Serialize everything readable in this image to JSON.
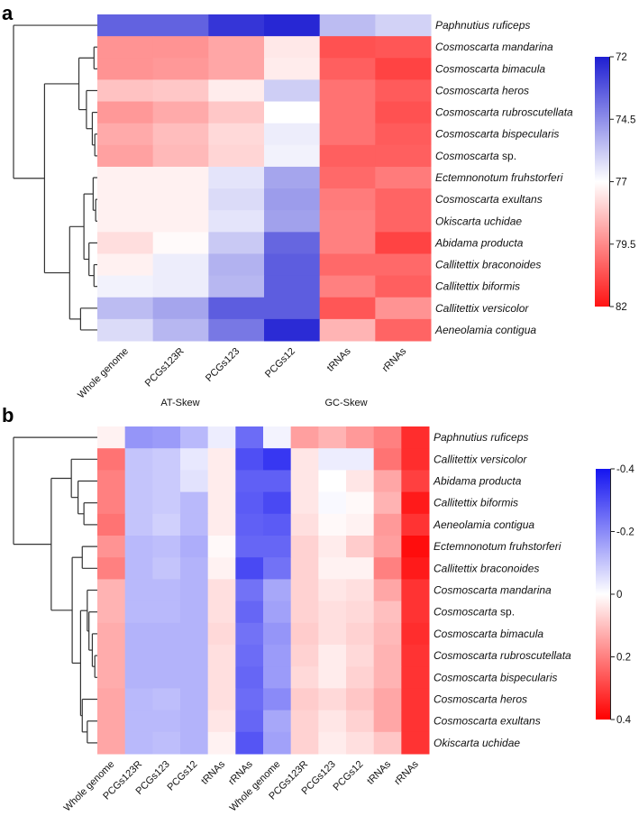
{
  "chart_data": [
    {
      "type": "heatmap",
      "panel_label": "a",
      "title": "",
      "columns": [
        "Whole genome",
        "PCGs123R",
        "PCGs123",
        "PCGs12",
        "tRNAs",
        "rRNAs"
      ],
      "rows": [
        "Paphnutius ruficeps",
        "Cosmoscarta mandarina",
        "Cosmoscarta bimacula",
        "Cosmoscarta heros",
        "Cosmoscarta rubroscutellata",
        "Cosmoscarta bispecularis",
        "Cosmoscarta sp.",
        "Ectemnonotum fruhstorferi",
        "Cosmoscarta exultans",
        "Okiscarta uchidae",
        "Abidama producta",
        "Callitettix braconoides",
        "Callitettix biformis",
        "Callitettix versicolor",
        "Aeneolamia contigua"
      ],
      "values": [
        [
          73.5,
          73.5,
          72.5,
          72.2,
          75.5,
          76.0
        ],
        [
          79.3,
          79.3,
          78.9,
          77.5,
          80.7,
          80.6
        ],
        [
          79.3,
          79.2,
          78.9,
          77.4,
          80.4,
          81.0
        ],
        [
          78.3,
          78.2,
          77.4,
          75.9,
          80.0,
          80.5
        ],
        [
          79.2,
          78.8,
          78.2,
          77.0,
          80.0,
          80.7
        ],
        [
          78.8,
          78.4,
          77.8,
          76.6,
          80.0,
          80.5
        ],
        [
          79.0,
          78.5,
          77.9,
          76.7,
          80.4,
          80.4
        ],
        [
          77.3,
          77.3,
          76.4,
          75.0,
          80.2,
          79.8
        ],
        [
          77.3,
          77.3,
          76.2,
          74.8,
          79.8,
          80.3
        ],
        [
          77.3,
          77.3,
          76.4,
          74.9,
          79.7,
          80.3
        ],
        [
          77.7,
          77.1,
          75.8,
          73.6,
          79.7,
          81.0
        ],
        [
          77.3,
          76.6,
          75.3,
          73.4,
          80.2,
          80.2
        ],
        [
          76.7,
          76.6,
          75.4,
          73.4,
          79.7,
          80.4
        ],
        [
          75.5,
          75.0,
          73.4,
          73.4,
          80.6,
          79.3
        ],
        [
          76.2,
          75.4,
          74.0,
          72.3,
          78.6,
          80.3
        ]
      ],
      "colorbar": {
        "min": 72,
        "max": 82,
        "mid": 77,
        "ticks": [
          "72",
          "74.5",
          "77",
          "79.5",
          "82"
        ],
        "low_color": "#1e1ed2",
        "mid_color": "#ffffff",
        "high_color": "#ff1414"
      },
      "dendrogram": {
        "h": 1.0,
        "c": [
          0,
          {
            "h": 0.63,
            "c": [
              {
                "h": 0.22,
                "c": [
                  {
                    "h": 0.04,
                    "c": [
                      1,
                      2
                    ]
                  },
                  {
                    "h": 0.13,
                    "c": [
                      3,
                      {
                        "h": 0.06,
                        "c": [
                          4,
                          {
                            "h": 0.03,
                            "c": [
                              5,
                              6
                            ]
                          }
                        ]
                      }
                    ]
                  }
                ]
              },
              {
                "h": 0.33,
                "c": [
                  {
                    "h": 0.16,
                    "c": [
                      {
                        "h": 0.05,
                        "c": [
                          7,
                          {
                            "h": 0.02,
                            "c": [
                              8,
                              9
                            ]
                          }
                        ]
                      },
                      {
                        "h": 0.1,
                        "c": [
                          10,
                          {
                            "h": 0.04,
                            "c": [
                              11,
                              12
                            ]
                          }
                        ]
                      }
                    ]
                  },
                  {
                    "h": 0.2,
                    "c": [
                      13,
                      14
                    ]
                  }
                ]
              }
            ]
          }
        ]
      }
    },
    {
      "type": "heatmap",
      "panel_label": "b",
      "title": "",
      "groups": [
        {
          "label": "AT-Skew",
          "span": [
            0,
            5
          ]
        },
        {
          "label": "GC-Skew",
          "span": [
            6,
            11
          ]
        }
      ],
      "columns": [
        "Whole genome",
        "PCGs123R",
        "PCGs123",
        "PCGs12",
        "tRNAs",
        "rRNAs",
        "Whole genome",
        "PCGs123R",
        "PCGs123",
        "PCGs12",
        "tRNAs",
        "rRNAs"
      ],
      "rows": [
        "Paphnutius ruficeps",
        "Callitettix versicolor",
        "Abidama producta",
        "Callitettix biformis",
        "Aeneolamia contigua",
        "Ectemnonotum fruhstorferi",
        "Callitettix braconoides",
        "Cosmoscarta mandarina",
        "Cosmoscarta sp.",
        "Cosmoscarta bimacula",
        "Cosmoscarta rubroscutellata",
        "Cosmoscarta bispecularis",
        "Cosmoscarta heros",
        "Cosmoscarta exultans",
        "Okiscarta uchidae"
      ],
      "values": [
        [
          0.02,
          -0.18,
          -0.17,
          -0.12,
          -0.03,
          -0.25,
          -0.02,
          0.15,
          0.12,
          0.16,
          0.2,
          0.33
        ],
        [
          0.22,
          -0.1,
          -0.09,
          -0.04,
          0.03,
          -0.3,
          -0.34,
          0.04,
          -0.03,
          -0.03,
          0.22,
          0.33
        ],
        [
          0.2,
          -0.1,
          -0.09,
          -0.05,
          0.03,
          -0.27,
          -0.27,
          0.04,
          0.0,
          0.04,
          0.14,
          0.3
        ],
        [
          0.2,
          -0.1,
          -0.09,
          -0.12,
          0.03,
          -0.28,
          -0.31,
          0.04,
          -0.01,
          0.01,
          0.12,
          0.36
        ],
        [
          0.22,
          -0.1,
          -0.08,
          -0.12,
          0.03,
          -0.27,
          -0.28,
          0.05,
          0.01,
          0.02,
          0.16,
          0.32
        ],
        [
          0.17,
          -0.12,
          -0.11,
          -0.14,
          0.01,
          -0.26,
          -0.26,
          0.07,
          0.03,
          0.08,
          0.15,
          0.38
        ],
        [
          0.2,
          -0.12,
          -0.1,
          -0.13,
          0.02,
          -0.31,
          -0.24,
          0.07,
          0.02,
          0.02,
          0.2,
          0.36
        ],
        [
          0.12,
          -0.12,
          -0.12,
          -0.13,
          0.05,
          -0.24,
          -0.15,
          0.07,
          0.04,
          0.05,
          0.14,
          0.32
        ],
        [
          0.12,
          -0.12,
          -0.12,
          -0.13,
          0.05,
          -0.26,
          -0.16,
          0.07,
          0.05,
          0.06,
          0.1,
          0.32
        ],
        [
          0.13,
          -0.13,
          -0.13,
          -0.13,
          0.06,
          -0.24,
          -0.18,
          0.08,
          0.05,
          0.07,
          0.11,
          0.33
        ],
        [
          0.13,
          -0.13,
          -0.13,
          -0.13,
          0.05,
          -0.25,
          -0.17,
          0.07,
          0.03,
          0.06,
          0.12,
          0.32
        ],
        [
          0.13,
          -0.13,
          -0.13,
          -0.13,
          0.05,
          -0.26,
          -0.17,
          0.06,
          0.03,
          0.07,
          0.12,
          0.32
        ],
        [
          0.14,
          -0.12,
          -0.11,
          -0.13,
          0.05,
          -0.25,
          -0.2,
          0.08,
          0.06,
          0.09,
          0.14,
          0.32
        ],
        [
          0.14,
          -0.12,
          -0.12,
          -0.13,
          0.04,
          -0.26,
          -0.15,
          0.07,
          0.04,
          0.07,
          0.14,
          0.32
        ],
        [
          0.14,
          -0.12,
          -0.11,
          -0.13,
          0.02,
          -0.29,
          -0.16,
          0.07,
          0.03,
          0.05,
          0.09,
          0.32
        ]
      ],
      "colorbar": {
        "min": -0.4,
        "max": 0.4,
        "mid": 0,
        "ticks": [
          "-0.4",
          "-0.2",
          "0",
          "0.2",
          "0.4"
        ],
        "low_color": "#1414f0",
        "mid_color": "#ffffff",
        "high_color": "#ff0000"
      },
      "dendrogram": {
        "h": 1.0,
        "c": [
          0,
          {
            "h": 0.55,
            "c": [
              {
                "h": 0.31,
                "c": [
                  1,
                  {
                    "h": 0.23,
                    "c": [
                      2,
                      {
                        "h": 0.16,
                        "c": [
                          3,
                          4
                        ]
                      }
                    ]
                  }
                ]
              },
              {
                "h": 0.3,
                "c": [
                  {
                    "h": 0.18,
                    "c": [
                      5,
                      6
                    ]
                  },
                  {
                    "h": 0.2,
                    "c": [
                      {
                        "h": 0.12,
                        "c": [
                          7,
                          {
                            "h": 0.1,
                            "c": [
                              8,
                              {
                                "h": 0.06,
                                "c": [
                                  9,
                                  {
                                    "h": 0.03,
                                    "c": [
                                      10,
                                      11
                                    ]
                                  }
                                ]
                              }
                            ]
                          }
                        ]
                      },
                      {
                        "h": 0.18,
                        "c": [
                          12,
                          {
                            "h": 0.12,
                            "c": [
                              13,
                              14
                            ]
                          }
                        ]
                      }
                    ]
                  }
                ]
              }
            ]
          }
        ]
      }
    }
  ]
}
